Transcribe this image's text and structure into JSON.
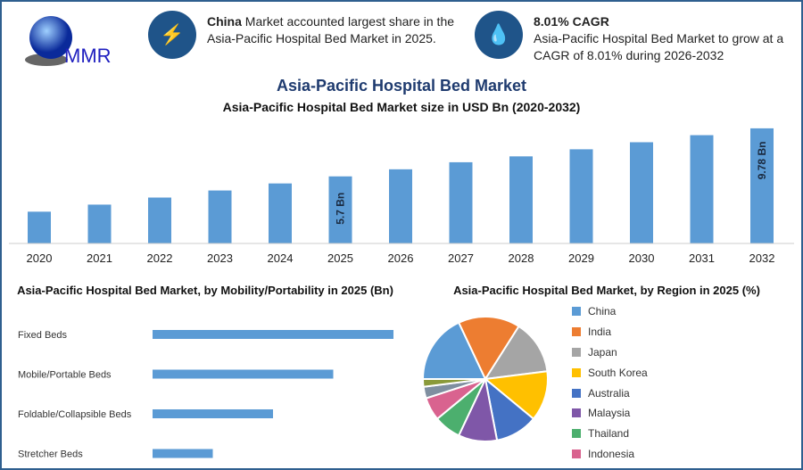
{
  "logo": {
    "text": "MMR"
  },
  "callouts": [
    {
      "bold": "China",
      "text": " Market accounted largest share in the Asia-Pacific Hospital Bed Market in 2025.",
      "icon": "lightning-icon"
    },
    {
      "bold": "8.01% CAGR",
      "text": "Asia-Pacific Hospital Bed Market to grow at a CAGR of 8.01% during 2026-2032",
      "icon": "drop-icon"
    }
  ],
  "chart_data": [
    {
      "type": "bar",
      "title": "Asia-Pacific Hospital Bed Market",
      "subtitle": "Asia-Pacific Hospital Bed Market size in USD Bn (2020-2032)",
      "categories": [
        "2020",
        "2021",
        "2022",
        "2023",
        "2024",
        "2025",
        "2026",
        "2027",
        "2028",
        "2029",
        "2030",
        "2031",
        "2032"
      ],
      "values": [
        2.7,
        3.3,
        3.9,
        4.5,
        5.1,
        5.7,
        6.3,
        6.9,
        7.4,
        8.0,
        8.6,
        9.2,
        9.78
      ],
      "data_labels": {
        "2025": "5.7 Bn",
        "2032": "9.78 Bn"
      },
      "ylim": [
        0,
        10
      ],
      "color": "#5b9bd5"
    },
    {
      "type": "bar",
      "orientation": "horizontal",
      "title": "Asia-Pacific Hospital Bed Market, by Mobility/Portability in 2025 (Bn)",
      "categories": [
        "Fixed Beds",
        "Mobile/Portable Beds",
        "Foldable/Collapsible Beds",
        "Stretcher Beds"
      ],
      "values": [
        4,
        3,
        2,
        1
      ],
      "xlim": [
        0,
        4
      ],
      "color": "#5b9bd5"
    },
    {
      "type": "pie",
      "title": "Asia-Pacific Hospital Bed Market, by Region in 2025 (%)",
      "labels": [
        "China",
        "India",
        "Japan",
        "South Korea",
        "Australia",
        "Malaysia",
        "Thailand",
        "Indonesia",
        "",
        ""
      ],
      "values": [
        18,
        16,
        14,
        13,
        11,
        10,
        7,
        6,
        3,
        2
      ],
      "colors": [
        "#5b9bd5",
        "#ed7d31",
        "#a5a5a5",
        "#ffc000",
        "#4472c4",
        "#7f57a8",
        "#4caf6e",
        "#d9638f",
        "#7f8fa0",
        "#8a9a3a"
      ],
      "legend_position": "right"
    }
  ]
}
